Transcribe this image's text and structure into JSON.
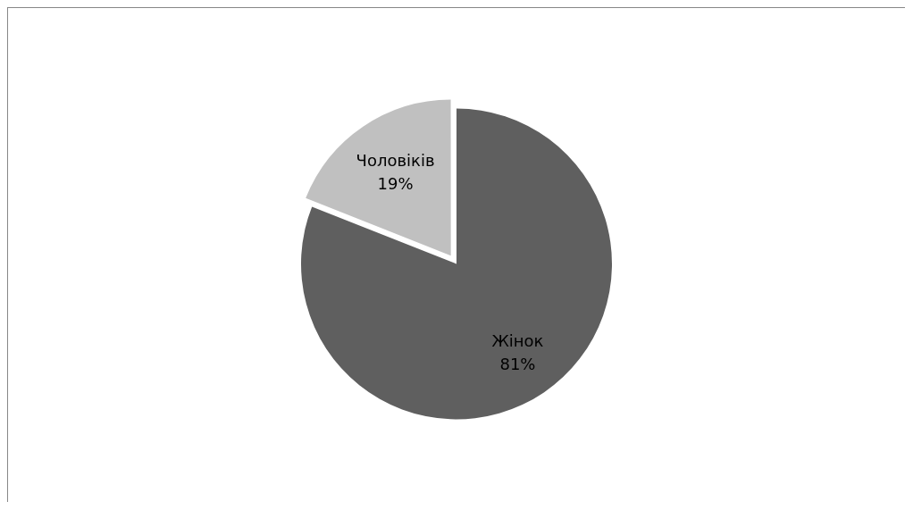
{
  "chart_data": {
    "type": "pie",
    "categories": [
      "Жінок",
      "Чоловіків"
    ],
    "values": [
      81,
      19
    ],
    "colors": [
      "#5f5f5f",
      "#c0c0c0"
    ],
    "value_labels": [
      "81%",
      "19%"
    ],
    "legend": false
  }
}
